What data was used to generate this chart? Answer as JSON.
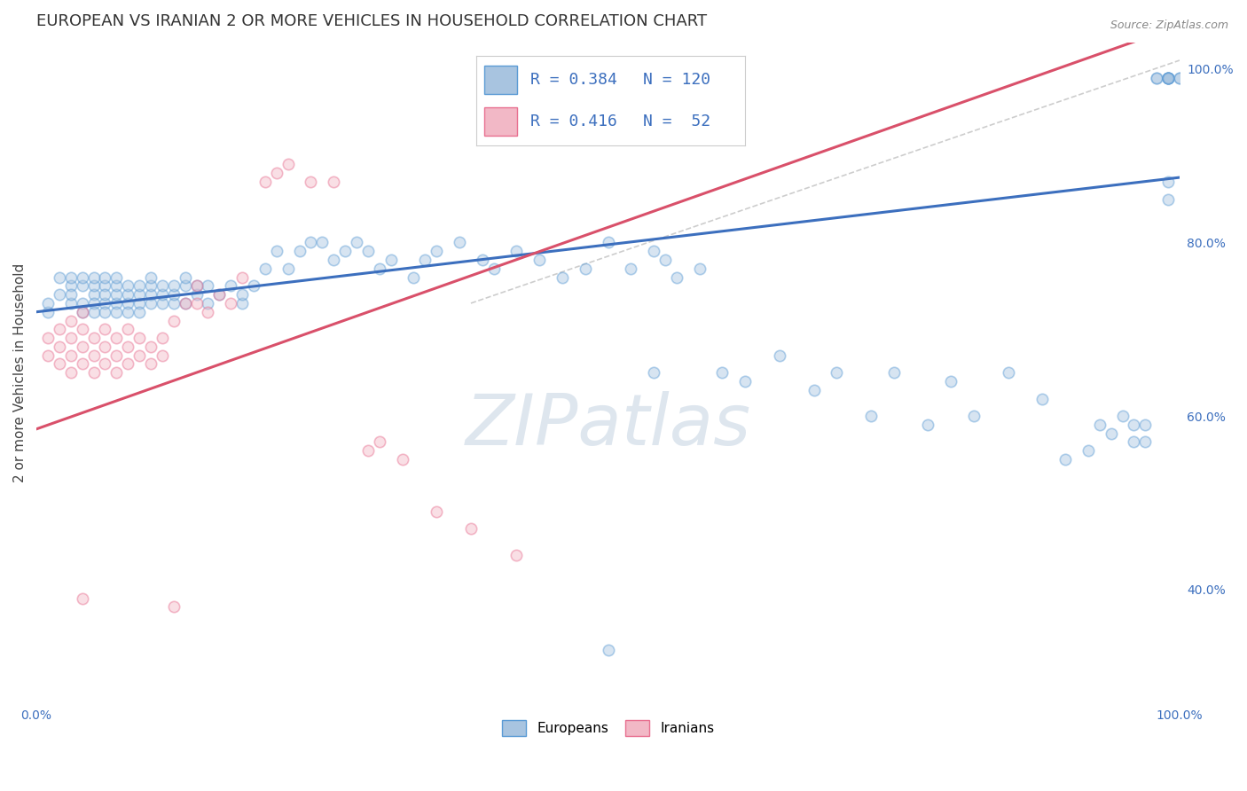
{
  "title": "EUROPEAN VS IRANIAN 2 OR MORE VEHICLES IN HOUSEHOLD CORRELATION CHART",
  "source": "Source: ZipAtlas.com",
  "ylabel": "2 or more Vehicles in Household",
  "xlim": [
    0.0,
    1.0
  ],
  "ylim": [
    0.27,
    1.03
  ],
  "blue_R": 0.384,
  "blue_N": 120,
  "pink_R": 0.416,
  "pink_N": 52,
  "blue_color": "#a8c4e0",
  "pink_color": "#f2b8c6",
  "blue_edge_color": "#5b9bd5",
  "pink_edge_color": "#e87090",
  "blue_line_color": "#3c6fbe",
  "pink_line_color": "#d9506a",
  "dashed_line_color": "#c8c8c8",
  "legend_text_color": "#3c6fbe",
  "watermark_color": "#d0dce8",
  "background_color": "#ffffff",
  "grid_color": "#e0e0e0",
  "title_color": "#333333",
  "source_color": "#888888",
  "tick_color": "#3c6fbe",
  "ylabel_color": "#444444",
  "title_fontsize": 13,
  "source_fontsize": 9,
  "tick_fontsize": 10,
  "ylabel_fontsize": 11,
  "legend_fontsize": 13,
  "scatter_size": 80,
  "scatter_alpha": 0.45,
  "scatter_linewidth": 1.2,
  "trend_linewidth": 2.2,
  "blue_trend": [
    0.0,
    1.0,
    0.72,
    0.875
  ],
  "pink_trend": [
    0.0,
    1.0,
    0.585,
    1.05
  ],
  "dashed_trend": [
    0.38,
    1.0,
    0.73,
    1.01
  ],
  "right_yticks": [
    0.4,
    0.6,
    0.8,
    1.0
  ],
  "right_yticklabels": [
    "40.0%",
    "60.0%",
    "80.0%",
    "100.0%"
  ],
  "bottom_xtick_labels": [
    "0.0%",
    "100.0%"
  ],
  "blue_x": [
    0.01,
    0.01,
    0.02,
    0.02,
    0.03,
    0.03,
    0.03,
    0.03,
    0.04,
    0.04,
    0.04,
    0.04,
    0.05,
    0.05,
    0.05,
    0.05,
    0.05,
    0.06,
    0.06,
    0.06,
    0.06,
    0.06,
    0.07,
    0.07,
    0.07,
    0.07,
    0.07,
    0.08,
    0.08,
    0.08,
    0.08,
    0.09,
    0.09,
    0.09,
    0.09,
    0.1,
    0.1,
    0.1,
    0.1,
    0.11,
    0.11,
    0.11,
    0.12,
    0.12,
    0.12,
    0.13,
    0.13,
    0.13,
    0.14,
    0.14,
    0.15,
    0.15,
    0.16,
    0.17,
    0.18,
    0.18,
    0.19,
    0.2,
    0.21,
    0.22,
    0.23,
    0.24,
    0.25,
    0.26,
    0.27,
    0.28,
    0.29,
    0.3,
    0.31,
    0.33,
    0.34,
    0.35,
    0.37,
    0.39,
    0.4,
    0.42,
    0.44,
    0.46,
    0.48,
    0.5,
    0.5,
    0.52,
    0.54,
    0.55,
    0.56,
    0.58,
    0.6,
    0.62,
    0.65,
    0.68,
    0.7,
    0.73,
    0.75,
    0.78,
    0.8,
    0.82,
    0.85,
    0.88,
    0.9,
    0.92,
    0.93,
    0.94,
    0.95,
    0.96,
    0.96,
    0.97,
    0.97,
    0.98,
    0.98,
    0.99,
    0.99,
    0.99,
    0.99,
    0.99,
    0.99,
    0.99,
    1.0,
    1.0,
    0.99,
    0.54
  ],
  "blue_y": [
    0.72,
    0.73,
    0.74,
    0.76,
    0.73,
    0.75,
    0.76,
    0.74,
    0.73,
    0.75,
    0.76,
    0.72,
    0.74,
    0.73,
    0.75,
    0.76,
    0.72,
    0.73,
    0.75,
    0.74,
    0.76,
    0.72,
    0.73,
    0.74,
    0.75,
    0.76,
    0.72,
    0.73,
    0.74,
    0.75,
    0.72,
    0.73,
    0.74,
    0.75,
    0.72,
    0.73,
    0.74,
    0.75,
    0.76,
    0.73,
    0.74,
    0.75,
    0.73,
    0.74,
    0.75,
    0.73,
    0.75,
    0.76,
    0.74,
    0.75,
    0.73,
    0.75,
    0.74,
    0.75,
    0.73,
    0.74,
    0.75,
    0.77,
    0.79,
    0.77,
    0.79,
    0.8,
    0.8,
    0.78,
    0.79,
    0.8,
    0.79,
    0.77,
    0.78,
    0.76,
    0.78,
    0.79,
    0.8,
    0.78,
    0.77,
    0.79,
    0.78,
    0.76,
    0.77,
    0.33,
    0.8,
    0.77,
    0.79,
    0.78,
    0.76,
    0.77,
    0.65,
    0.64,
    0.67,
    0.63,
    0.65,
    0.6,
    0.65,
    0.59,
    0.64,
    0.6,
    0.65,
    0.62,
    0.55,
    0.56,
    0.59,
    0.58,
    0.6,
    0.57,
    0.59,
    0.57,
    0.59,
    0.99,
    0.99,
    0.99,
    0.99,
    0.99,
    0.99,
    0.99,
    0.87,
    0.85,
    0.99,
    0.99,
    0.99,
    0.65
  ],
  "pink_x": [
    0.01,
    0.01,
    0.02,
    0.02,
    0.02,
    0.03,
    0.03,
    0.03,
    0.03,
    0.04,
    0.04,
    0.04,
    0.04,
    0.05,
    0.05,
    0.05,
    0.06,
    0.06,
    0.06,
    0.07,
    0.07,
    0.07,
    0.08,
    0.08,
    0.08,
    0.09,
    0.09,
    0.1,
    0.1,
    0.11,
    0.11,
    0.12,
    0.13,
    0.14,
    0.14,
    0.15,
    0.16,
    0.17,
    0.18,
    0.2,
    0.21,
    0.22,
    0.24,
    0.26,
    0.29,
    0.3,
    0.32,
    0.35,
    0.38,
    0.42,
    0.12,
    0.04
  ],
  "pink_y": [
    0.67,
    0.69,
    0.66,
    0.68,
    0.7,
    0.65,
    0.67,
    0.69,
    0.71,
    0.66,
    0.68,
    0.7,
    0.72,
    0.65,
    0.67,
    0.69,
    0.66,
    0.68,
    0.7,
    0.65,
    0.67,
    0.69,
    0.66,
    0.68,
    0.7,
    0.67,
    0.69,
    0.66,
    0.68,
    0.67,
    0.69,
    0.71,
    0.73,
    0.75,
    0.73,
    0.72,
    0.74,
    0.73,
    0.76,
    0.87,
    0.88,
    0.89,
    0.87,
    0.87,
    0.56,
    0.57,
    0.55,
    0.49,
    0.47,
    0.44,
    0.38,
    0.39
  ]
}
